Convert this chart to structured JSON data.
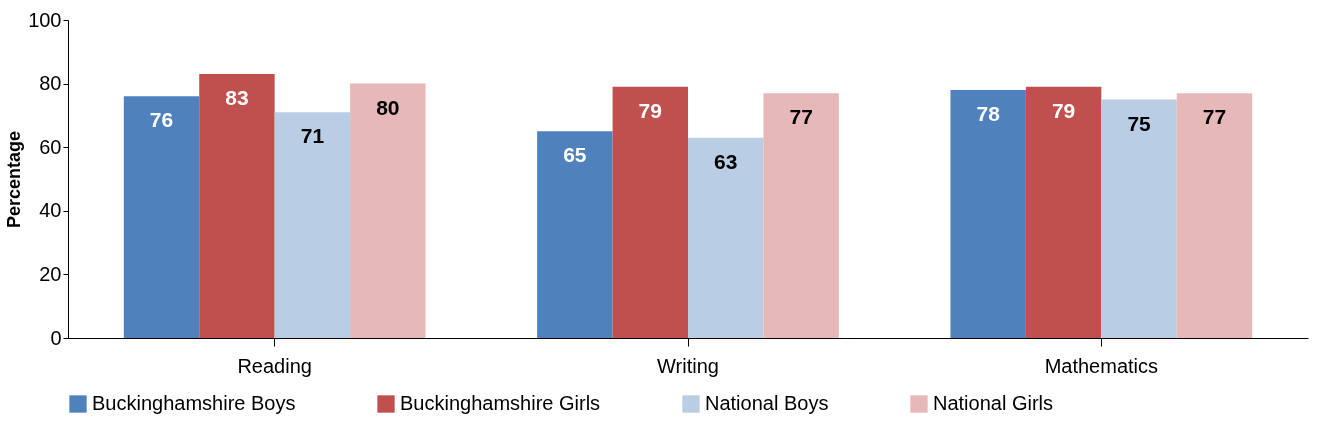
{
  "chart_data": {
    "type": "bar",
    "ylabel": "Percentage",
    "categories": [
      "Reading",
      "Writing",
      "Mathematics"
    ],
    "series": [
      {
        "name": "Buckinghamshire Boys",
        "color": "#4f81bd",
        "values": [
          76,
          65,
          78
        ]
      },
      {
        "name": "Buckinghamshire Girls",
        "color": "#c0504d",
        "values": [
          83,
          79,
          79
        ]
      },
      {
        "name": "National Boys",
        "color": "#b9cde5",
        "values": [
          71,
          63,
          75
        ]
      },
      {
        "name": "National Girls",
        "color": "#e6b9b8",
        "values": [
          80,
          77,
          77
        ]
      }
    ],
    "ylim": [
      0,
      100
    ],
    "yticks": [
      0,
      20,
      40,
      60,
      80,
      100
    ],
    "grid": false,
    "legend": "bottom",
    "data_labels": true
  }
}
